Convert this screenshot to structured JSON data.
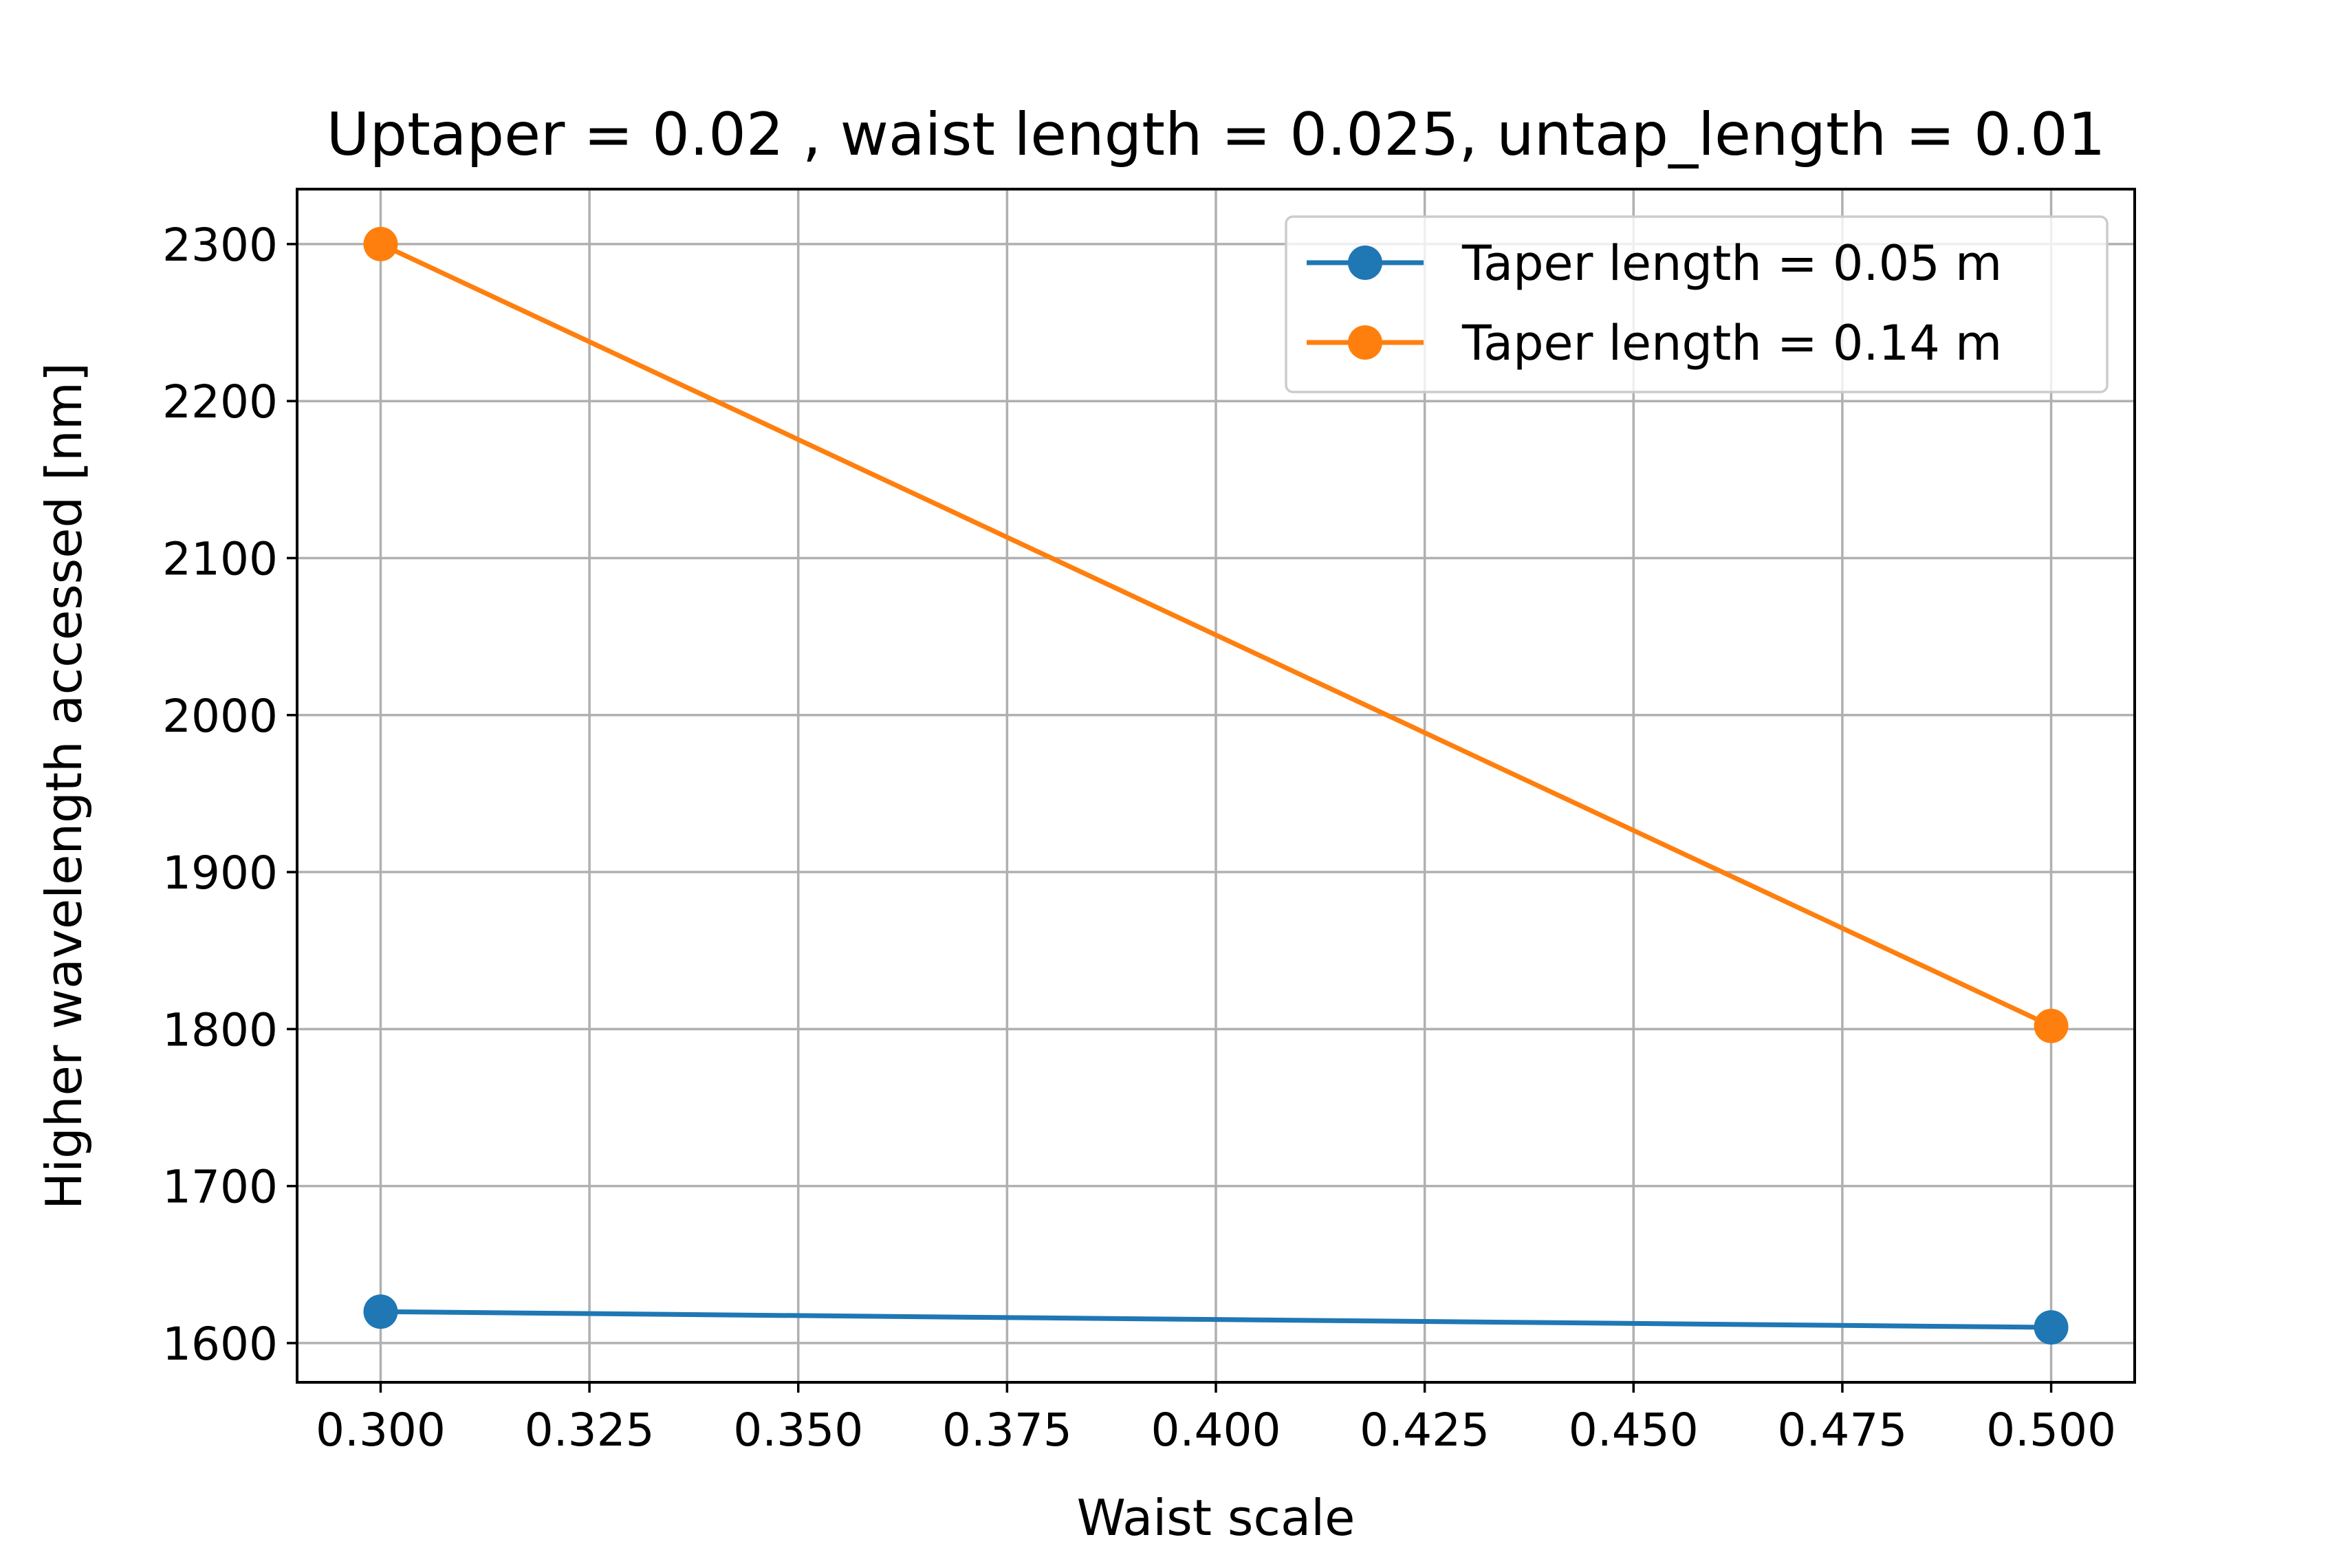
{
  "chart_data": {
    "type": "line",
    "title": "Uptaper = 0.02 , waist length = 0.025, untap_length = 0.01",
    "xlabel": "Waist scale",
    "ylabel": "Higher wavelength accessed [nm]",
    "xlim": [
      0.29,
      0.51
    ],
    "ylim": [
      1575,
      2335
    ],
    "x_ticks": [
      0.3,
      0.325,
      0.35,
      0.375,
      0.4,
      0.425,
      0.45,
      0.475,
      0.5
    ],
    "x_tick_labels": [
      "0.300",
      "0.325",
      "0.350",
      "0.375",
      "0.400",
      "0.425",
      "0.450",
      "0.475",
      "0.500"
    ],
    "y_ticks": [
      1600,
      1700,
      1800,
      1900,
      2000,
      2100,
      2200,
      2300
    ],
    "y_tick_labels": [
      "1600",
      "1700",
      "1800",
      "1900",
      "2000",
      "2100",
      "2200",
      "2300"
    ],
    "grid": true,
    "legend_position": "top-right",
    "series": [
      {
        "name": "Taper length = 0.05 m",
        "color": "#1f77b4",
        "marker": "circle",
        "x": [
          0.3,
          0.5
        ],
        "y": [
          1620,
          1610
        ]
      },
      {
        "name": "Taper length = 0.14 m",
        "color": "#ff7f0e",
        "marker": "circle",
        "x": [
          0.3,
          0.5
        ],
        "y": [
          2300,
          1802
        ]
      }
    ]
  }
}
